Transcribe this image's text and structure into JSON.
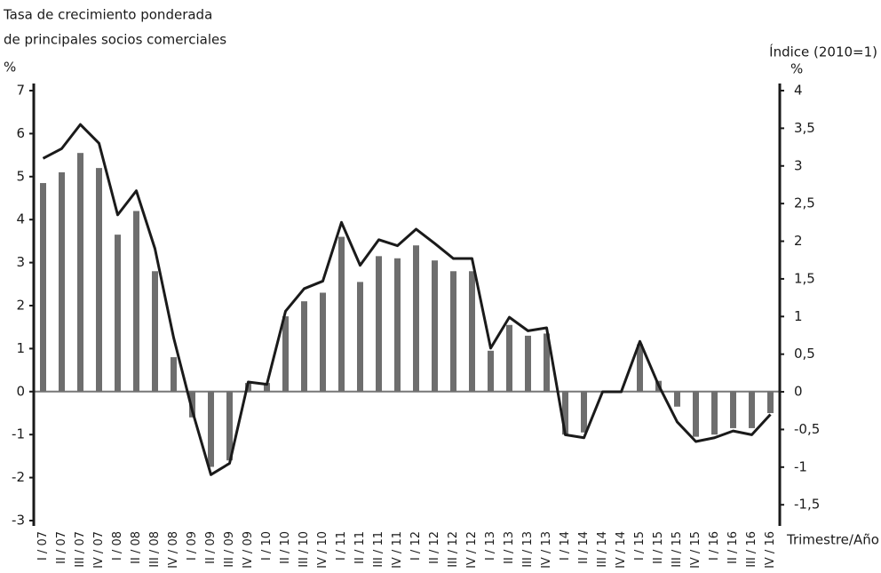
{
  "chart_data": {
    "type": "bar_line",
    "left_title": [
      "Tasa de crecimiento ponderada",
      "de principales socios comerciales"
    ],
    "left_unit": "%",
    "right_title": "Índice (2010=1)",
    "right_unit": "%",
    "x_label": "Trimestre/Año",
    "categories": [
      "I / 07",
      "II / 07",
      "III / 07",
      "IV / 07",
      "I / 08",
      "II / 08",
      "III / 08",
      "IV / 08",
      "I / 09",
      "II / 09",
      "III / 09",
      "IV / 09",
      "I / 10",
      "II / 10",
      "III / 10",
      "IV / 10",
      "I / 11",
      "II / 11",
      "III / 11",
      "IV / 11",
      "I / 12",
      "II / 12",
      "III / 12",
      "IV / 12",
      "I / 13",
      "II / 13",
      "III / 13",
      "IV / 13",
      "I / 14",
      "II / 14",
      "III / 14",
      "IV / 14",
      "I / 15",
      "II / 15",
      "III / 15",
      "IV / 15",
      "I / 16",
      "II / 16",
      "III / 16",
      "IV / 16"
    ],
    "series": [
      {
        "type": "bar",
        "color": "#6e6e6e",
        "axis": "y",
        "values": [
          4.85,
          5.1,
          5.55,
          5.2,
          3.65,
          4.2,
          2.8,
          0.8,
          -0.6,
          -1.75,
          -1.6,
          0.2,
          0.2,
          1.75,
          2.1,
          2.3,
          3.6,
          2.55,
          3.15,
          3.1,
          3.4,
          3.05,
          2.8,
          2.8,
          0.95,
          1.55,
          1.3,
          1.35,
          -1.0,
          -0.95,
          0,
          0,
          1.1,
          0.25,
          -0.35,
          -1.05,
          -1.0,
          -0.85,
          -0.85,
          -0.5
        ]
      },
      {
        "type": "line",
        "color": "#1a1a1a",
        "axis": "y2",
        "values": [
          3.1,
          3.23,
          3.55,
          3.3,
          2.35,
          2.67,
          1.9,
          0.72,
          -0.25,
          -1.1,
          -0.95,
          0.13,
          0.1,
          1.07,
          1.37,
          1.47,
          2.25,
          1.68,
          2.02,
          1.94,
          2.16,
          1.97,
          1.77,
          1.77,
          0.58,
          0.99,
          0.81,
          0.85,
          -0.57,
          -0.61,
          0,
          0,
          0.67,
          0.09,
          -0.4,
          -0.66,
          -0.61,
          -0.52,
          -0.57,
          -0.3
        ]
      }
    ],
    "ylim": [
      -3,
      7
    ],
    "yticks": [
      -3,
      -2,
      -1,
      0,
      1,
      2,
      3,
      4,
      5,
      6,
      7
    ],
    "y2lim": [
      -1.71,
      4
    ],
    "y2ticks": [
      {
        "value": -1.5,
        "label": "-1,5"
      },
      -1,
      {
        "value": -0.5,
        "label": "-0,5"
      },
      0,
      {
        "value": 0.5,
        "label": "0,5"
      },
      1,
      {
        "value": 1.5,
        "label": "1,5"
      },
      2,
      {
        "value": 2.5,
        "label": "2,5"
      },
      3,
      {
        "value": 3.5,
        "label": "3,5"
      },
      4
    ]
  }
}
